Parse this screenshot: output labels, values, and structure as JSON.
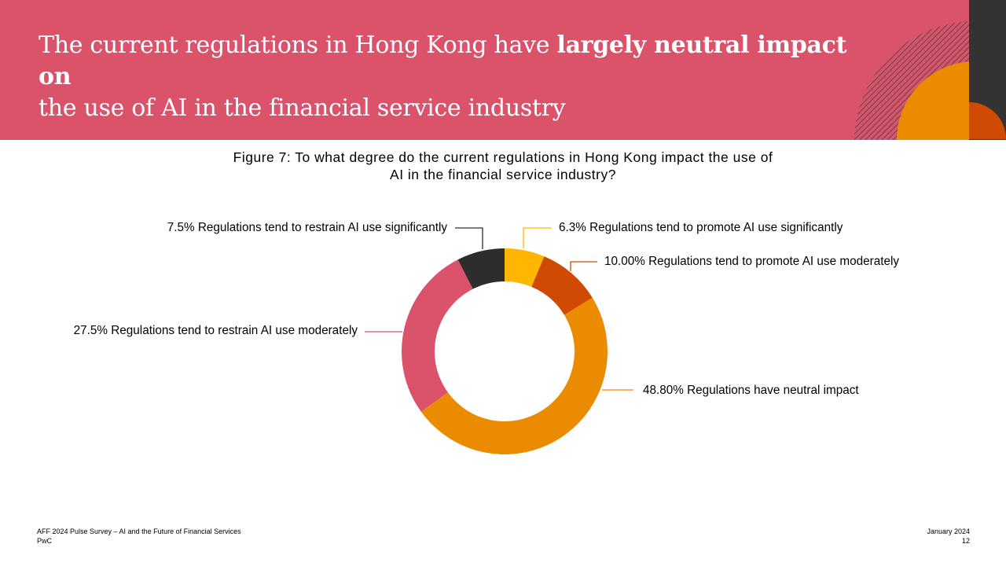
{
  "header": {
    "title_prefix": "The current regulations in Hong Kong have ",
    "title_bold": "largely neutral impact on",
    "title_line2": "the use of AI in the financial service industry",
    "background_color": "#db536a"
  },
  "chart_data": {
    "type": "pie",
    "variant": "donut",
    "title": "Figure 7: To what degree do the current regulations in Hong Kong impact the use of AI in the financial service industry?",
    "title_line1": "Figure 7: To what degree do the current regulations in Hong Kong impact the use of",
    "title_line2": "AI in the financial service industry?",
    "slices": [
      {
        "label": "6.3% Regulations tend to promote AI use significantly",
        "value": 6.3,
        "color": "#ffb600"
      },
      {
        "label": "10.00% Regulations tend to promote AI use moderately",
        "value": 10.0,
        "color": "#d04a02"
      },
      {
        "label": "48.80% Regulations have neutral impact",
        "value": 48.8,
        "color": "#eb8c00"
      },
      {
        "label": "27.5% Regulations tend to restrain AI use moderately",
        "value": 27.5,
        "color": "#db536a"
      },
      {
        "label": "7.5% Regulations tend to restrain AI use significantly",
        "value": 7.5,
        "color": "#2d2d2d"
      }
    ]
  },
  "footer": {
    "source": "AFF 2024 Pulse Survey – AI and the Future of Financial Services",
    "company": "PwC",
    "date": "January 2024",
    "page_number": "12"
  }
}
